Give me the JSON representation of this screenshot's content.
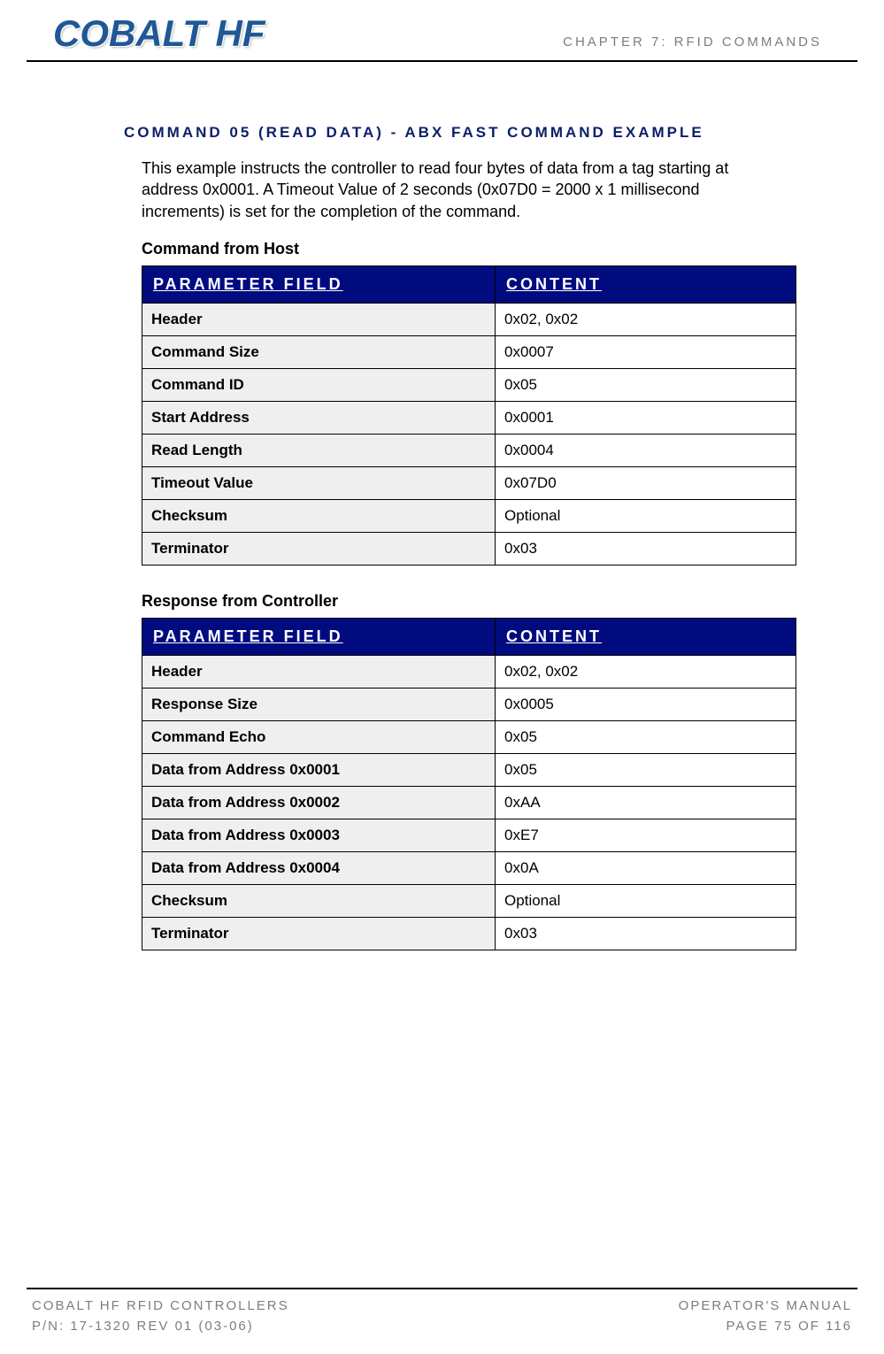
{
  "header": {
    "logo_text": "COBALT HF",
    "chapter": "CHAPTER 7: RFID COMMANDS"
  },
  "section": {
    "title": "COMMAND 05 (READ DATA) - ABX FAST COMMAND EXAMPLE",
    "intro": "This example instructs the controller to read four bytes of data from a tag starting at address 0x0001. A Timeout Value of 2 seconds (0x07D0 = 2000 x 1 millisecond increments) is set for the completion of the command."
  },
  "table1": {
    "caption": "Command from Host",
    "col_param": "PARAMETER FIELD",
    "col_content": "CONTENT",
    "rows": [
      {
        "param": "Header",
        "content": "0x02, 0x02"
      },
      {
        "param": "Command Size",
        "content": "0x0007"
      },
      {
        "param": "Command ID",
        "content": "0x05"
      },
      {
        "param": "Start Address",
        "content": "0x0001"
      },
      {
        "param": "Read Length",
        "content": "0x0004"
      },
      {
        "param": "Timeout Value",
        "content": "0x07D0"
      },
      {
        "param": "Checksum",
        "content": "Optional"
      },
      {
        "param": "Terminator",
        "content": "0x03"
      }
    ]
  },
  "table2": {
    "caption": "Response from Controller",
    "col_param": "PARAMETER FIELD",
    "col_content": "CONTENT",
    "rows": [
      {
        "param": "Header",
        "content": "0x02, 0x02"
      },
      {
        "param": "Response Size",
        "content": "0x0005"
      },
      {
        "param": "Command Echo",
        "content": "0x05"
      },
      {
        "param": "Data from Address 0x0001",
        "content": "0x05"
      },
      {
        "param": "Data from Address 0x0002",
        "content": "0xAA"
      },
      {
        "param": "Data from Address 0x0003",
        "content": "0xE7"
      },
      {
        "param": "Data from Address 0x0004",
        "content": "0x0A"
      },
      {
        "param": "Checksum",
        "content": "Optional"
      },
      {
        "param": "Terminator",
        "content": "0x03"
      }
    ]
  },
  "footer": {
    "left_line1": "COBALT HF RFID CONTROLLERS",
    "left_line2": "P/N: 17-1320 REV 01 (03-06)",
    "right_line1": "OPERATOR'S MANUAL",
    "right_line2": "PAGE 75 OF 116"
  },
  "colors": {
    "brand_blue": "#205896",
    "table_header_bg": "#000b80",
    "gray_text": "#7d7d7d",
    "param_bg": "#efefef"
  }
}
